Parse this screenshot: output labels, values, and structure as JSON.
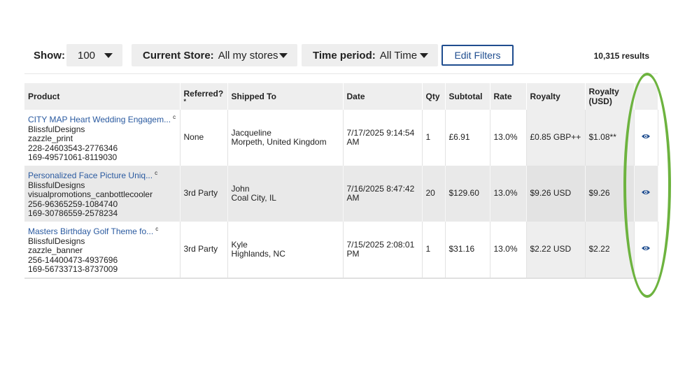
{
  "toolbar": {
    "show_label": "Show:",
    "show_value": "100",
    "store_label": "Current Store:",
    "store_value": "All my stores",
    "time_label": "Time period:",
    "time_value": "All Time",
    "edit_filters": "Edit Filters",
    "results": "10,315 results"
  },
  "table": {
    "headers": {
      "product": "Product",
      "referred": "Referred?",
      "referred_note": "*",
      "shipped_to": "Shipped To",
      "date": "Date",
      "qty": "Qty",
      "subtotal": "Subtotal",
      "rate": "Rate",
      "royalty": "Royalty",
      "royalty_usd_1": "Royalty",
      "royalty_usd_2": "(USD)"
    },
    "rows": [
      {
        "product_title": "CITY MAP Heart Wedding Engagem...",
        "product_marker": "c",
        "store": "BlissfulDesigns",
        "product_type": "zazzle_print",
        "id1": "228-24603543-2776346",
        "id2": "169-49571061-8119030",
        "referred": "None",
        "ship_name": "Jacqueline",
        "ship_place": "Morpeth, United Kingdom",
        "date_line1": "7/17/2025 9:14:54",
        "date_line2": "AM",
        "qty": "1",
        "subtotal": "£6.91",
        "rate": "13.0%",
        "royalty": "£0.85 GBP++",
        "royalty_usd": "$1.08**"
      },
      {
        "product_title": "Personalized Face Picture Uniq...",
        "product_marker": "c",
        "store": "BlissfulDesigns",
        "product_type": "visualpromotions_canbottlecooler",
        "id1": "256-96365259-1084740",
        "id2": "169-30786559-2578234",
        "referred": "3rd Party",
        "ship_name": "John",
        "ship_place": "Coal City, IL",
        "date_line1": "7/16/2025 8:47:42",
        "date_line2": "AM",
        "qty": "20",
        "subtotal": "$129.60",
        "rate": "13.0%",
        "royalty": "$9.26 USD",
        "royalty_usd": "$9.26"
      },
      {
        "product_title": "Masters Birthday Golf Theme fo...",
        "product_marker": "c",
        "store": "BlissfulDesigns",
        "product_type": "zazzle_banner",
        "id1": "256-14400473-4937696",
        "id2": "169-56733713-8737009",
        "referred": "3rd Party",
        "ship_name": "Kyle",
        "ship_place": "Highlands, NC",
        "date_line1": "7/15/2025 2:08:01",
        "date_line2": "PM",
        "qty": "1",
        "subtotal": "$31.16",
        "rate": "13.0%",
        "royalty": "$2.22 USD",
        "royalty_usd": "$2.22"
      }
    ]
  },
  "icons": {
    "view": "eye-icon",
    "dropdown": "caret-down-icon"
  },
  "colors": {
    "link": "#2a5aa0",
    "button_border": "#1f4d8f",
    "highlight_oval": "#6db33f"
  }
}
